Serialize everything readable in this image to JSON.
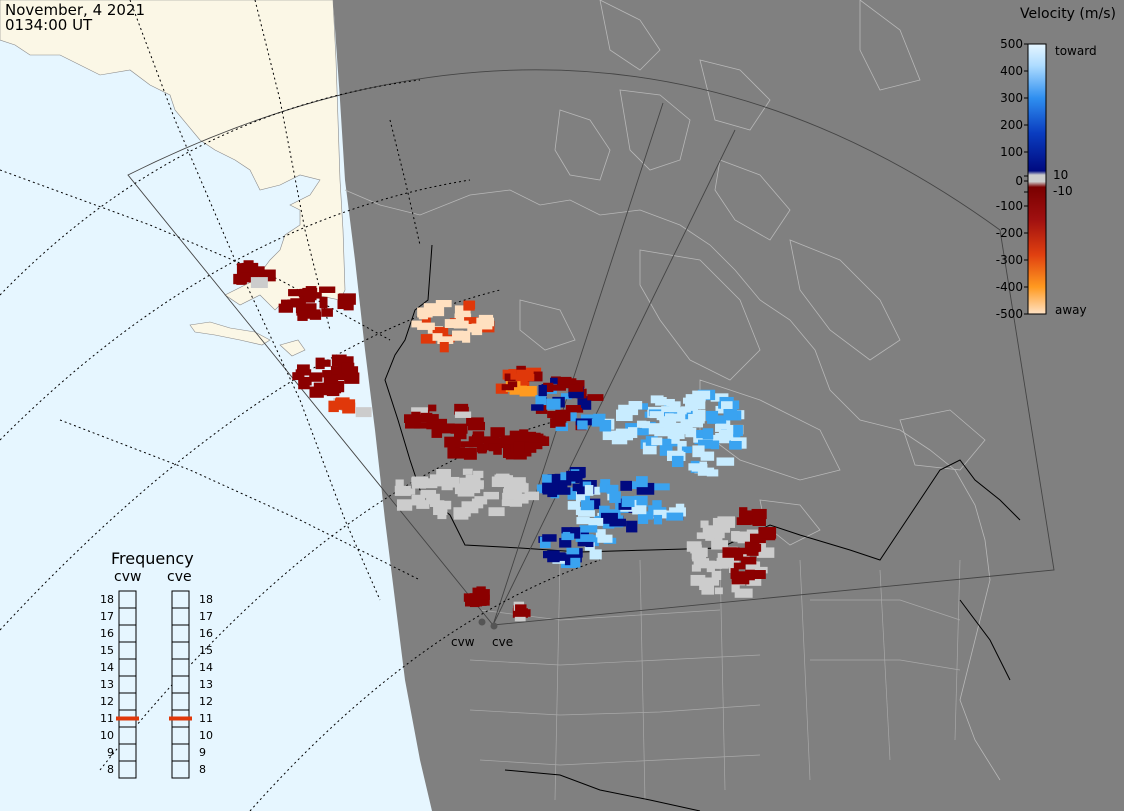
{
  "title": {
    "date": "November, 4 2021",
    "time": "0134:00 UT"
  },
  "colors": {
    "ocean": "#e6f6ff",
    "land_day": "#fbf7e6",
    "night": "#808080",
    "borders_dark": "#000000",
    "borders_light": "#b7b7b7",
    "grid_line": "#000000"
  },
  "velocity_scale": {
    "title": "Velocity (m/s)",
    "ticks": [
      "500",
      "400",
      "300",
      "200",
      "100",
      "10",
      "0",
      "-10",
      "-100",
      "-200",
      "-300",
      "-400",
      "-500"
    ],
    "toward_label": "toward",
    "away_label": "away",
    "colors": {
      "toward_light": "#c8ecff",
      "toward_mid": "#3aa3f0",
      "toward_dark": "#000a80",
      "ground_scatter": "#cccccc",
      "away_dark": "#8b0000",
      "away_mid": "#e0380a",
      "away_light": "#ffe0c0"
    }
  },
  "frequency": {
    "title": "Frequency",
    "radars": [
      {
        "name": "cvw",
        "value": 11
      },
      {
        "name": "cve",
        "value": 11
      }
    ],
    "levels": [
      "18",
      "17",
      "16",
      "15",
      "14",
      "13",
      "12",
      "11",
      "10",
      "9",
      "8"
    ]
  },
  "radar_sites": [
    {
      "name": "cvw"
    },
    {
      "name": "cve"
    }
  ]
}
